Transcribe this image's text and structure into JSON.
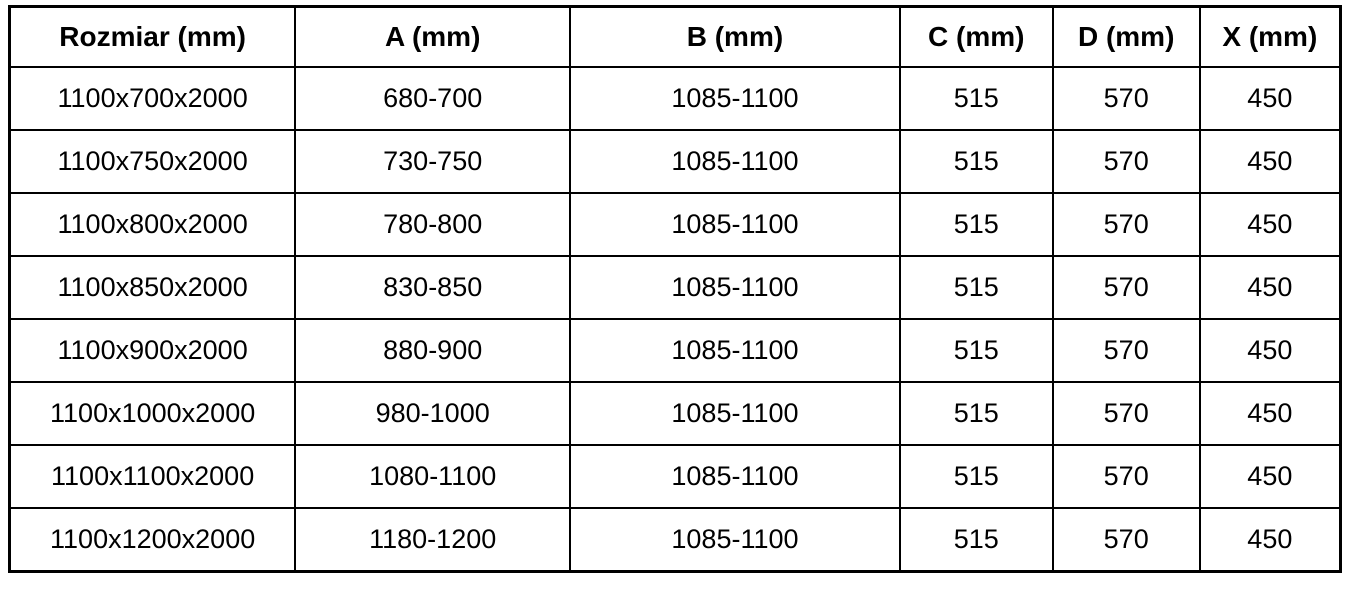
{
  "colors": {
    "border": "#000000",
    "text": "#000000",
    "background": "#ffffff"
  },
  "table": {
    "headers": [
      "Rozmiar (mm)",
      "A (mm)",
      "B (mm)",
      "C (mm)",
      "D (mm)",
      "X (mm)"
    ],
    "rows": [
      [
        "1100x700x2000",
        "680-700",
        "1085-1100",
        "515",
        "570",
        "450"
      ],
      [
        "1100x750x2000",
        "730-750",
        "1085-1100",
        "515",
        "570",
        "450"
      ],
      [
        "1100x800x2000",
        "780-800",
        "1085-1100",
        "515",
        "570",
        "450"
      ],
      [
        "1100x850x2000",
        "830-850",
        "1085-1100",
        "515",
        "570",
        "450"
      ],
      [
        "1100x900x2000",
        "880-900",
        "1085-1100",
        "515",
        "570",
        "450"
      ],
      [
        "1100x1000x2000",
        "980-1000",
        "1085-1100",
        "515",
        "570",
        "450"
      ],
      [
        "1100x1100x2000",
        "1080-1100",
        "1085-1100",
        "515",
        "570",
        "450"
      ],
      [
        "1100x1200x2000",
        "1180-1200",
        "1085-1100",
        "515",
        "570",
        "450"
      ]
    ]
  }
}
